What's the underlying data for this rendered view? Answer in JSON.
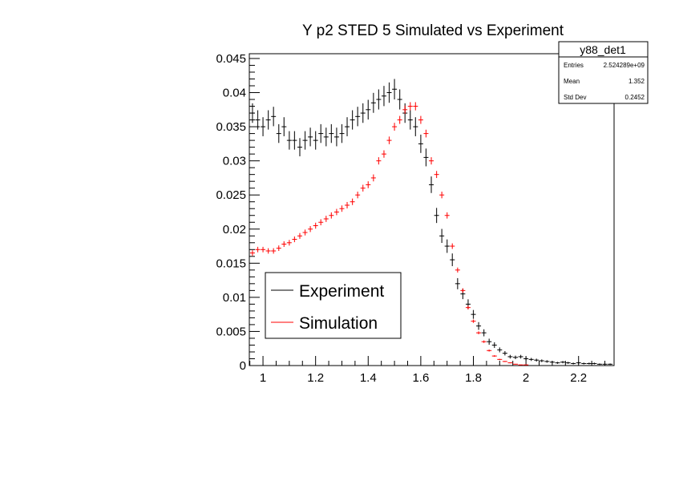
{
  "chart_data": {
    "type": "scatter",
    "title": "Y p2 STED 5 Simulated vs Experiment",
    "xlabel": "",
    "ylabel": "",
    "xlim": [
      0.948,
      2.335
    ],
    "ylim": [
      0,
      0.0457
    ],
    "x_ticks": [
      "1",
      "1.2",
      "1.4",
      "1.6",
      "1.8",
      "2",
      "2.2"
    ],
    "x_tick_values": [
      1,
      1.2,
      1.4,
      1.6,
      1.8,
      2,
      2.2
    ],
    "y_ticks": [
      "0",
      "0.005",
      "0.01",
      "0.015",
      "0.02",
      "0.025",
      "0.03",
      "0.035",
      "0.04",
      "0.045"
    ],
    "y_tick_values": [
      0,
      0.005,
      0.01,
      0.015,
      0.02,
      0.025,
      0.03,
      0.035,
      0.04,
      0.045
    ],
    "grid": false,
    "legend_placement": "bottom-left",
    "x": [
      0.96,
      0.98,
      1.0,
      1.02,
      1.04,
      1.06,
      1.08,
      1.1,
      1.12,
      1.14,
      1.16,
      1.18,
      1.2,
      1.22,
      1.24,
      1.26,
      1.28,
      1.3,
      1.32,
      1.34,
      1.36,
      1.38,
      1.4,
      1.42,
      1.44,
      1.46,
      1.48,
      1.5,
      1.52,
      1.54,
      1.56,
      1.58,
      1.6,
      1.62,
      1.64,
      1.66,
      1.68,
      1.7,
      1.72,
      1.74,
      1.76,
      1.78,
      1.8,
      1.82,
      1.84,
      1.86,
      1.88,
      1.9,
      1.92,
      1.94,
      1.96,
      1.98,
      2.0,
      2.02,
      2.04,
      2.06,
      2.08,
      2.1,
      2.12,
      2.14,
      2.16,
      2.18,
      2.2,
      2.22,
      2.24,
      2.26,
      2.28,
      2.3,
      2.32
    ],
    "series": [
      {
        "name": "Experiment",
        "color": "#000000",
        "yerr": 0.0015,
        "values": [
          0.037,
          0.036,
          0.035,
          0.036,
          0.0365,
          0.034,
          0.035,
          0.033,
          0.033,
          0.032,
          0.033,
          0.0335,
          0.033,
          0.034,
          0.0335,
          0.034,
          0.0335,
          0.034,
          0.035,
          0.036,
          0.0365,
          0.037,
          0.0375,
          0.0385,
          0.039,
          0.0395,
          0.04,
          0.0405,
          0.039,
          0.037,
          0.036,
          0.035,
          0.0325,
          0.0305,
          0.0265,
          0.022,
          0.019,
          0.0175,
          0.0155,
          0.012,
          0.0105,
          0.009,
          0.0075,
          0.0058,
          0.0048,
          0.0035,
          0.003,
          0.0023,
          0.0018,
          0.0013,
          0.0012,
          0.0013,
          0.001,
          0.0009,
          0.0008,
          0.0007,
          0.0006,
          0.0005,
          0.0004,
          0.0005,
          0.0004,
          0.0003,
          0.0004,
          0.0003,
          0.0003,
          0.0003,
          0.0002,
          0.0002,
          0.0002
        ]
      },
      {
        "name": "Simulation",
        "color": "#ff0000",
        "yerr": 0.0006,
        "values": [
          0.0165,
          0.017,
          0.017,
          0.0168,
          0.0168,
          0.0172,
          0.0178,
          0.018,
          0.0185,
          0.019,
          0.0195,
          0.02,
          0.0205,
          0.021,
          0.0215,
          0.022,
          0.0225,
          0.023,
          0.0235,
          0.024,
          0.025,
          0.026,
          0.0265,
          0.0275,
          0.03,
          0.031,
          0.033,
          0.035,
          0.036,
          0.0375,
          0.038,
          0.038,
          0.036,
          0.034,
          0.03,
          0.028,
          0.025,
          0.022,
          0.0175,
          0.014,
          0.011,
          0.0085,
          0.0065,
          0.0048,
          0.0035,
          0.0022,
          0.0014,
          0.0009,
          0.0006,
          0.0004,
          0.0002,
          0.0001,
          0.0001,
          0,
          0,
          0,
          0,
          0,
          0,
          0,
          0,
          0,
          0,
          0,
          0,
          0,
          0,
          0,
          0
        ]
      }
    ],
    "stats_box": {
      "title": "y88_det1",
      "rows": [
        {
          "label": "Entries",
          "value": "2.524289e+09"
        },
        {
          "label": "Mean",
          "value": "1.352"
        },
        {
          "label": "Std Dev",
          "value": "0.2452"
        }
      ]
    }
  }
}
